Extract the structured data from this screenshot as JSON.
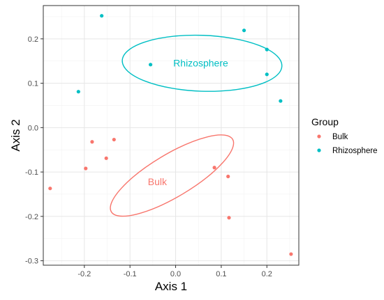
{
  "chart_data": {
    "type": "scatter",
    "title": "",
    "xlabel": "Axis 1",
    "ylabel": "Axis 2",
    "xlim": [
      -0.29,
      0.27
    ],
    "ylim": [
      -0.31,
      0.275
    ],
    "x_ticks": [
      -0.2,
      -0.1,
      0.0,
      0.1,
      0.2
    ],
    "x_tick_labels": [
      "-0.2",
      "-0.1",
      "0.0",
      "0.1",
      "0.2"
    ],
    "y_ticks": [
      -0.3,
      -0.2,
      -0.1,
      0.0,
      0.1,
      0.2
    ],
    "y_tick_labels": [
      "-0.3",
      "-0.2",
      "-0.1",
      "0.0",
      "0.1",
      "0.2"
    ],
    "grid": true,
    "legend": {
      "title": "Group",
      "placement": "right",
      "entries": [
        "Bulk",
        "Rhizosphere"
      ]
    },
    "series": [
      {
        "name": "Bulk",
        "color": "#F8766D",
        "points": [
          {
            "x": -0.275,
            "y": -0.137
          },
          {
            "x": -0.197,
            "y": -0.092
          },
          {
            "x": -0.183,
            "y": -0.032
          },
          {
            "x": -0.152,
            "y": -0.069
          },
          {
            "x": -0.135,
            "y": -0.027
          },
          {
            "x": 0.085,
            "y": -0.09
          },
          {
            "x": 0.115,
            "y": -0.11
          },
          {
            "x": 0.117,
            "y": -0.203
          },
          {
            "x": 0.253,
            "y": -0.285
          }
        ],
        "ellipse": {
          "cx": -0.008,
          "cy": -0.108,
          "rx": 0.155,
          "ry": 0.048,
          "angle_deg": 31
        },
        "annotation": {
          "text": "Bulk",
          "x": -0.04,
          "y": -0.122
        }
      },
      {
        "name": "Rhizosphere",
        "color": "#00BFC4",
        "points": [
          {
            "x": -0.162,
            "y": 0.252
          },
          {
            "x": -0.213,
            "y": 0.081
          },
          {
            "x": -0.055,
            "y": 0.142
          },
          {
            "x": 0.15,
            "y": 0.219
          },
          {
            "x": 0.2,
            "y": 0.176
          },
          {
            "x": 0.2,
            "y": 0.12
          },
          {
            "x": 0.23,
            "y": 0.06
          }
        ],
        "ellipse": {
          "cx": 0.058,
          "cy": 0.145,
          "rx": 0.175,
          "ry": 0.063,
          "angle_deg": -2
        },
        "annotation": {
          "text": "Rhizosphere",
          "x": 0.055,
          "y": 0.146
        }
      }
    ]
  }
}
